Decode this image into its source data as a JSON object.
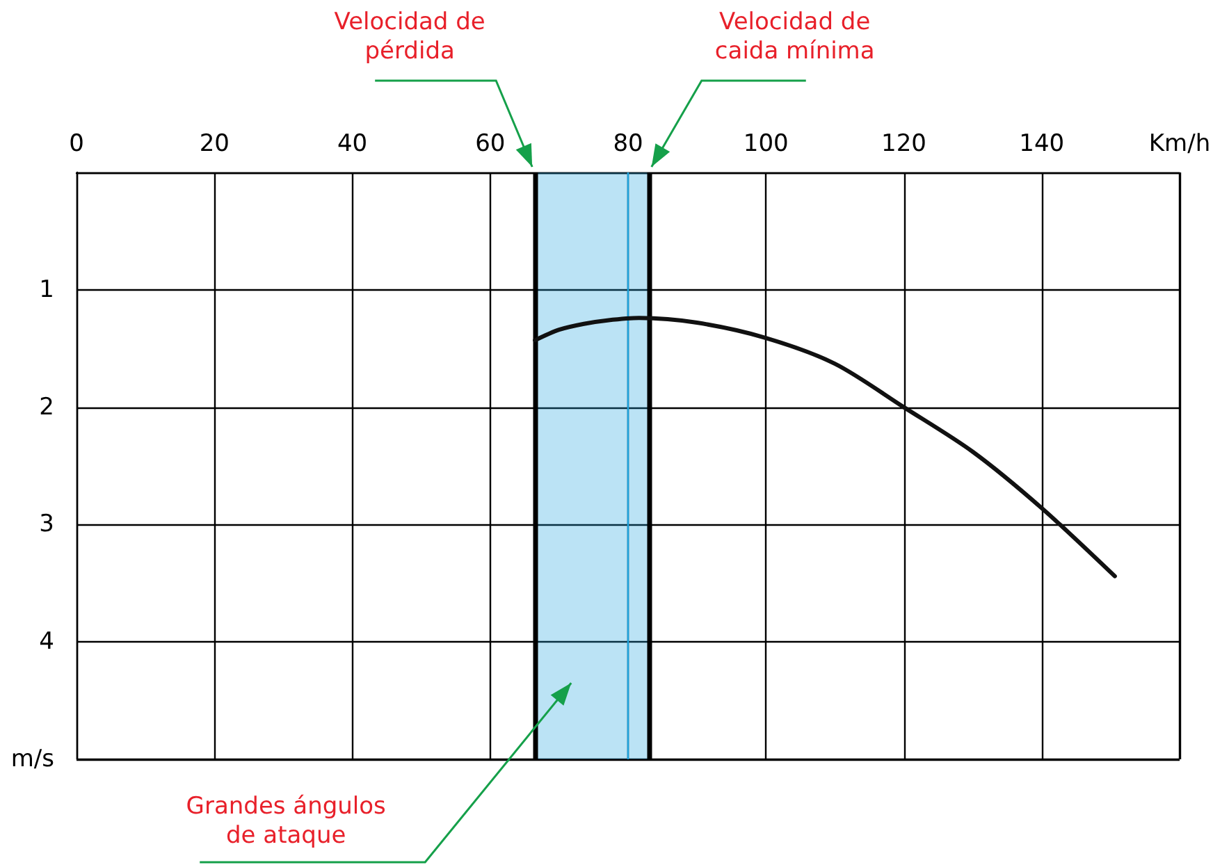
{
  "chart_data": {
    "type": "line",
    "xlabel": "Km/h",
    "ylabel": "m/s",
    "xlim": [
      0,
      160
    ],
    "xticks": [
      0,
      20,
      40,
      60,
      80,
      100,
      120,
      140
    ],
    "ylim": [
      5,
      0
    ],
    "yticks": [
      1,
      2,
      3,
      4
    ],
    "grid": true,
    "marker": "none",
    "series": [
      {
        "color": "#111111",
        "x": [
          66.5,
          70,
          73.6,
          77,
          81.6,
          90,
          100,
          110,
          120,
          130,
          140,
          150.6
        ],
        "values": [
          1.43,
          1.34,
          1.29,
          1.26,
          1.24,
          1.28,
          1.41,
          1.63,
          2.0,
          2.38,
          2.86,
          3.44
        ]
      }
    ],
    "ref_lines": [
      {
        "axis": "x",
        "value": 66.5,
        "label": "Velocidad de pérdida",
        "color": "#000000"
      },
      {
        "axis": "x",
        "value": 83,
        "label": "Velocidad de caida mínima",
        "color": "#000000"
      },
      {
        "axis": "x",
        "value": 80,
        "color": "#1fa3dd"
      }
    ],
    "bands": [
      {
        "axis": "x",
        "from": 66.5,
        "to": 83,
        "label": "Grandes ángulos de ataque",
        "color": "#1fa3dd"
      }
    ]
  }
}
